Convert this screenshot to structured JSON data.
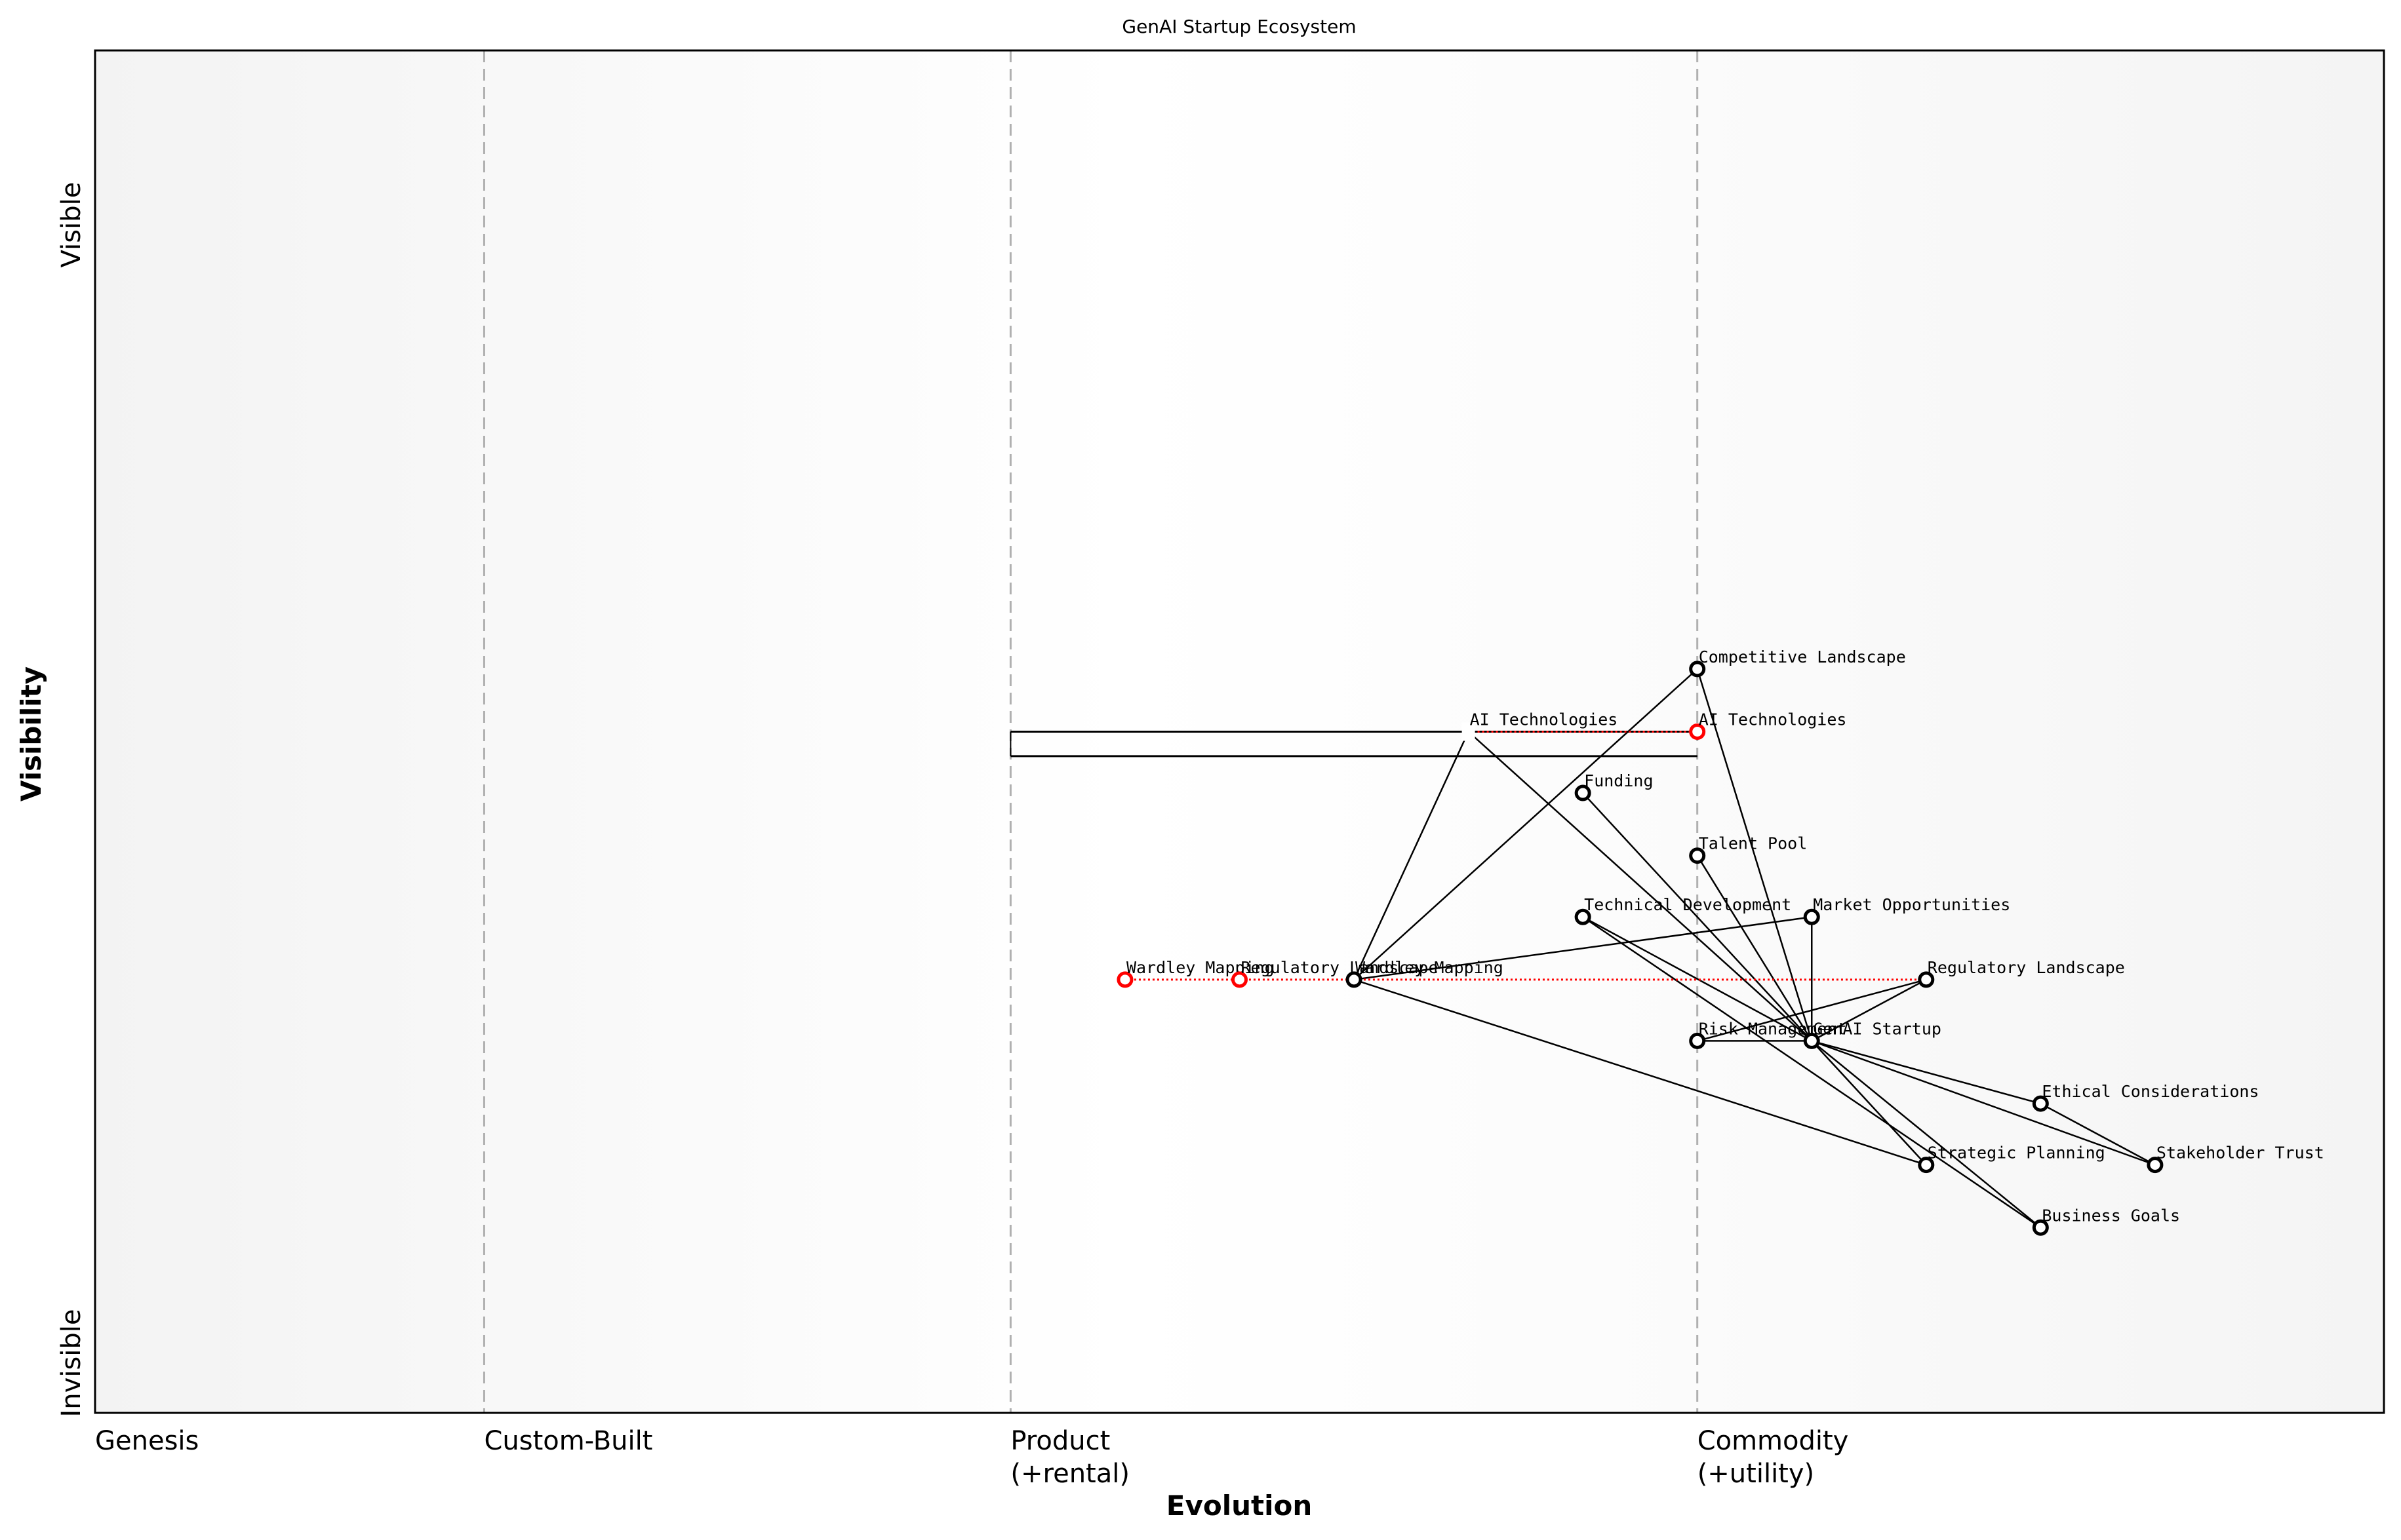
{
  "title": "GenAI Startup Ecosystem",
  "colors": {
    "node_stroke": "#000000",
    "evolve_stroke": "#ff0000",
    "divider": "#b0b0b0",
    "band_edge": "#f4f4f4",
    "band_mid": "#ffffff"
  },
  "chart_data": {
    "type": "wardley-map",
    "title": "GenAI Startup Ecosystem",
    "xlabel": "Evolution",
    "ylabel": "Visibility",
    "xlim": [
      0,
      1
    ],
    "ylim": [
      0,
      1
    ],
    "x_stages": [
      {
        "label": "Genesis",
        "sublabel": "",
        "x": 0.0
      },
      {
        "label": "Custom-Built",
        "sublabel": "",
        "x": 0.17
      },
      {
        "label": "Product",
        "sublabel": "(+rental)",
        "x": 0.4
      },
      {
        "label": "Commodity",
        "sublabel": "(+utility)",
        "x": 0.7
      }
    ],
    "y_labels": {
      "top": "Visible",
      "bottom": "Invisible"
    },
    "nodes": [
      {
        "id": "competitive_landscape",
        "label": "Competitive Landscape",
        "x": 0.7,
        "y": 0.546
      },
      {
        "id": "ai_technologies",
        "label": "AI Technologies",
        "x": 0.7,
        "y": 0.5,
        "evolving": true
      },
      {
        "id": "funding",
        "label": "Funding",
        "x": 0.65,
        "y": 0.455
      },
      {
        "id": "talent_pool",
        "label": "Talent Pool",
        "x": 0.7,
        "y": 0.409
      },
      {
        "id": "technical_development",
        "label": "Technical Development",
        "x": 0.65,
        "y": 0.364
      },
      {
        "id": "market_opportunities",
        "label": "Market Opportunities",
        "x": 0.75,
        "y": 0.364
      },
      {
        "id": "regulatory_landscape",
        "label": "Regulatory Landscape",
        "x": 0.8,
        "y": 0.318
      },
      {
        "id": "wardley_mapping",
        "label": "Wardley Mapping",
        "x": 0.55,
        "y": 0.318
      },
      {
        "id": "risk_management",
        "label": "Risk Management",
        "x": 0.7,
        "y": 0.273
      },
      {
        "id": "genai_startup",
        "label": "GenAI Startup",
        "x": 0.75,
        "y": 0.273
      },
      {
        "id": "ethical_considerations",
        "label": "Ethical Considerations",
        "x": 0.85,
        "y": 0.227
      },
      {
        "id": "strategic_planning",
        "label": "Strategic Planning",
        "x": 0.8,
        "y": 0.182
      },
      {
        "id": "stakeholder_trust",
        "label": "Stakeholder Trust",
        "x": 0.9,
        "y": 0.182
      },
      {
        "id": "business_goals",
        "label": "Business Goals",
        "x": 0.85,
        "y": 0.136
      }
    ],
    "ghost_nodes": [
      {
        "id": "ai_technologies_origin",
        "label": "AI Technologies",
        "x": 0.6,
        "y": 0.5
      }
    ],
    "evolve_nodes": [
      {
        "id": "wardley_mapping_evolved",
        "label": "Wardley Mapping",
        "x": 0.45,
        "y": 0.318
      },
      {
        "id": "regulatory_landscape_evolved",
        "label": "Regulatory Landscape",
        "x": 0.5,
        "y": 0.318
      }
    ],
    "evolve_lines": [
      {
        "from_x": 0.6,
        "to_x": 0.7,
        "y": 0.5
      },
      {
        "from_x": 0.45,
        "to_x": 0.8,
        "y": 0.318
      }
    ],
    "pipeline": {
      "x_start": 0.4,
      "x_end": 0.7,
      "y_top": 0.5,
      "y_bottom": 0.482
    },
    "edges": [
      [
        "wardley_mapping",
        "ai_technologies_origin"
      ],
      [
        "wardley_mapping",
        "competitive_landscape"
      ],
      [
        "wardley_mapping",
        "market_opportunities"
      ],
      [
        "wardley_mapping",
        "strategic_planning"
      ],
      [
        "ai_technologies_origin",
        "genai_startup"
      ],
      [
        "competitive_landscape",
        "genai_startup"
      ],
      [
        "funding",
        "genai_startup"
      ],
      [
        "talent_pool",
        "genai_startup"
      ],
      [
        "technical_development",
        "genai_startup"
      ],
      [
        "technical_development",
        "business_goals"
      ],
      [
        "market_opportunities",
        "genai_startup"
      ],
      [
        "regulatory_landscape",
        "genai_startup"
      ],
      [
        "regulatory_landscape",
        "risk_management"
      ],
      [
        "risk_management",
        "genai_startup"
      ],
      [
        "genai_startup",
        "ethical_considerations"
      ],
      [
        "genai_startup",
        "stakeholder_trust"
      ],
      [
        "genai_startup",
        "strategic_planning"
      ],
      [
        "genai_startup",
        "business_goals"
      ],
      [
        "ethical_considerations",
        "stakeholder_trust"
      ]
    ]
  }
}
